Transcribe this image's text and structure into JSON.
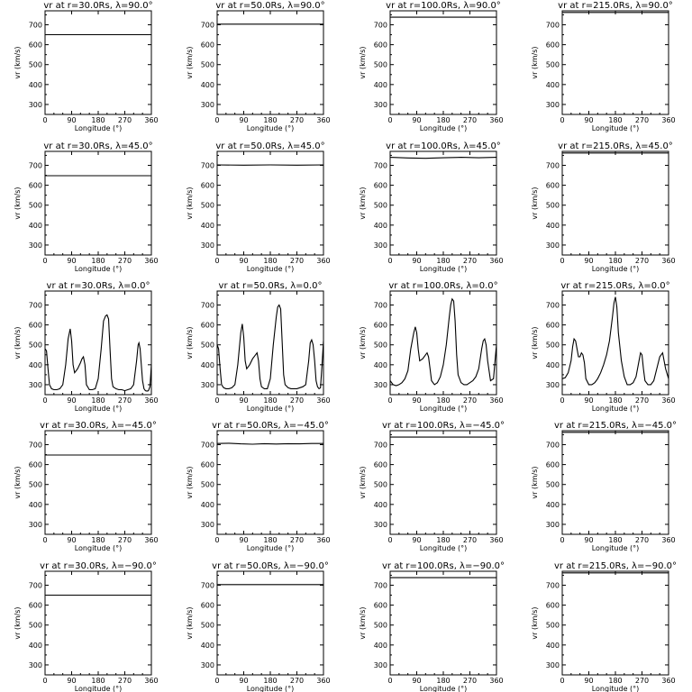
{
  "chart_data": [
    {
      "type": "line",
      "title": "vr at r=30.0Rs, λ=90.0°",
      "xlabel": "Longitude (°)",
      "ylabel": "vr (km/s)",
      "xlim": [
        0,
        360
      ],
      "ylim": [
        250,
        770
      ],
      "xticks": [
        "0",
        "90",
        "180",
        "270",
        "360"
      ],
      "yticks": [
        "300",
        "400",
        "500",
        "600",
        "700"
      ],
      "x": [
        0,
        360
      ],
      "y": [
        650,
        650
      ]
    },
    {
      "type": "line",
      "title": "vr at r=50.0Rs, λ=90.0°",
      "xlabel": "Longitude (°)",
      "ylabel": "vr (km/s)",
      "xlim": [
        0,
        360
      ],
      "ylim": [
        250,
        770
      ],
      "xticks": [
        "0",
        "90",
        "180",
        "270",
        "360"
      ],
      "yticks": [
        "300",
        "400",
        "500",
        "600",
        "700"
      ],
      "x": [
        0,
        360
      ],
      "y": [
        703,
        703
      ]
    },
    {
      "type": "line",
      "title": "vr at r=100.0Rs, λ=90.0°",
      "xlabel": "Longitude (°)",
      "ylabel": "vr (km/s)",
      "xlim": [
        0,
        360
      ],
      "ylim": [
        250,
        770
      ],
      "xticks": [
        "0",
        "90",
        "180",
        "270",
        "360"
      ],
      "yticks": [
        "300",
        "400",
        "500",
        "600",
        "700"
      ],
      "x": [
        0,
        360
      ],
      "y": [
        738,
        738
      ]
    },
    {
      "type": "line",
      "title": "vr at r=215.0Rs, λ=90.0°",
      "xlabel": "Longitude (°)",
      "ylabel": "vr (km/s)",
      "xlim": [
        0,
        360
      ],
      "ylim": [
        250,
        770
      ],
      "xticks": [
        "0",
        "90",
        "180",
        "270",
        "360"
      ],
      "yticks": [
        "300",
        "400",
        "500",
        "600",
        "700"
      ],
      "x": [
        0,
        360
      ],
      "y": [
        762,
        762
      ]
    },
    {
      "type": "line",
      "title": "vr at r=30.0Rs, λ=45.0°",
      "xlabel": "Longitude (°)",
      "ylabel": "vr (km/s)",
      "xlim": [
        0,
        360
      ],
      "ylim": [
        250,
        770
      ],
      "xticks": [
        "0",
        "90",
        "180",
        "270",
        "360"
      ],
      "yticks": [
        "300",
        "400",
        "500",
        "600",
        "700"
      ],
      "x": [
        0,
        360
      ],
      "y": [
        648,
        648
      ]
    },
    {
      "type": "line",
      "title": "vr at r=50.0Rs, λ=45.0°",
      "xlabel": "Longitude (°)",
      "ylabel": "vr (km/s)",
      "xlim": [
        0,
        360
      ],
      "ylim": [
        250,
        770
      ],
      "xticks": [
        "0",
        "90",
        "180",
        "270",
        "360"
      ],
      "yticks": [
        "300",
        "400",
        "500",
        "600",
        "700"
      ],
      "x": [
        0,
        90,
        180,
        270,
        360
      ],
      "y": [
        702,
        701,
        702,
        701,
        702
      ]
    },
    {
      "type": "line",
      "title": "vr at r=100.0Rs, λ=45.0°",
      "xlabel": "Longitude (°)",
      "ylabel": "vr (km/s)",
      "xlim": [
        0,
        360
      ],
      "ylim": [
        250,
        770
      ],
      "xticks": [
        "0",
        "90",
        "180",
        "270",
        "360"
      ],
      "yticks": [
        "300",
        "400",
        "500",
        "600",
        "700"
      ],
      "x": [
        0,
        60,
        120,
        180,
        240,
        300,
        360
      ],
      "y": [
        740,
        737,
        735,
        738,
        740,
        738,
        740
      ]
    },
    {
      "type": "line",
      "title": "vr at r=215.0Rs, λ=45.0°",
      "xlabel": "Longitude (°)",
      "ylabel": "vr (km/s)",
      "xlim": [
        0,
        360
      ],
      "ylim": [
        250,
        770
      ],
      "xticks": [
        "0",
        "90",
        "180",
        "270",
        "360"
      ],
      "yticks": [
        "300",
        "400",
        "500",
        "600",
        "700"
      ],
      "x": [
        0,
        360
      ],
      "y": [
        762,
        762
      ]
    },
    {
      "type": "line",
      "title": "vr at r=30.0Rs, λ=0.0°",
      "xlabel": "Longitude (°)",
      "ylabel": "vr (km/s)",
      "xlim": [
        0,
        360
      ],
      "ylim": [
        250,
        770
      ],
      "xticks": [
        "0",
        "90",
        "180",
        "270",
        "360"
      ],
      "yticks": [
        "300",
        "400",
        "500",
        "600",
        "700"
      ],
      "x": [
        0,
        5,
        10,
        15,
        22,
        30,
        40,
        50,
        60,
        70,
        78,
        85,
        90,
        95,
        100,
        110,
        120,
        125,
        130,
        135,
        140,
        150,
        160,
        170,
        180,
        190,
        198,
        205,
        210,
        215,
        220,
        225,
        230,
        240,
        250,
        260,
        270,
        280,
        290,
        300,
        310,
        315,
        318,
        322,
        325,
        330,
        335,
        340,
        345,
        350,
        355,
        358,
        360
      ],
      "y": [
        480,
        470,
        380,
        300,
        280,
        275,
        275,
        280,
        300,
        400,
        530,
        580,
        520,
        400,
        360,
        380,
        410,
        430,
        440,
        400,
        300,
        275,
        275,
        280,
        330,
        480,
        620,
        645,
        650,
        630,
        480,
        330,
        290,
        280,
        275,
        275,
        270,
        275,
        280,
        300,
        420,
        500,
        510,
        480,
        420,
        320,
        280,
        270,
        268,
        270,
        290,
        350,
        400
      ]
    },
    {
      "type": "line",
      "title": "vr at r=50.0Rs, λ=0.0°",
      "xlabel": "Longitude (°)",
      "ylabel": "vr (km/s)",
      "xlim": [
        0,
        360
      ],
      "ylim": [
        250,
        770
      ],
      "xticks": [
        "0",
        "90",
        "180",
        "270",
        "360"
      ],
      "yticks": [
        "300",
        "400",
        "500",
        "600",
        "700"
      ],
      "x": [
        0,
        5,
        10,
        15,
        22,
        30,
        40,
        50,
        60,
        70,
        80,
        85,
        90,
        95,
        100,
        110,
        120,
        130,
        135,
        140,
        145,
        150,
        160,
        170,
        180,
        190,
        200,
        205,
        210,
        215,
        220,
        225,
        230,
        240,
        250,
        260,
        270,
        280,
        290,
        300,
        310,
        315,
        320,
        325,
        330,
        335,
        340,
        345,
        350,
        355,
        360
      ],
      "y": [
        500,
        480,
        380,
        300,
        285,
        280,
        280,
        285,
        300,
        400,
        560,
        605,
        540,
        420,
        380,
        400,
        430,
        450,
        460,
        420,
        330,
        290,
        280,
        280,
        330,
        500,
        640,
        690,
        700,
        680,
        520,
        350,
        300,
        285,
        280,
        280,
        280,
        285,
        290,
        300,
        420,
        510,
        525,
        500,
        420,
        320,
        290,
        280,
        285,
        400,
        520
      ]
    },
    {
      "type": "line",
      "title": "vr at r=100.0Rs, λ=0.0°",
      "xlabel": "Longitude (°)",
      "ylabel": "vr (km/s)",
      "xlim": [
        0,
        360
      ],
      "ylim": [
        250,
        770
      ],
      "xticks": [
        "0",
        "90",
        "180",
        "270",
        "360"
      ],
      "yticks": [
        "300",
        "400",
        "500",
        "600",
        "700"
      ],
      "x": [
        0,
        10,
        20,
        30,
        40,
        50,
        60,
        70,
        80,
        85,
        90,
        95,
        100,
        110,
        120,
        125,
        130,
        135,
        140,
        150,
        160,
        170,
        180,
        190,
        200,
        205,
        210,
        215,
        220,
        225,
        230,
        240,
        250,
        260,
        270,
        280,
        290,
        300,
        310,
        315,
        320,
        325,
        330,
        340,
        350,
        355,
        360
      ],
      "y": [
        320,
        300,
        295,
        300,
        310,
        330,
        370,
        480,
        560,
        590,
        560,
        480,
        420,
        430,
        450,
        460,
        440,
        380,
        320,
        300,
        310,
        340,
        400,
        500,
        640,
        700,
        730,
        720,
        620,
        450,
        350,
        310,
        300,
        300,
        310,
        320,
        340,
        380,
        480,
        520,
        530,
        500,
        420,
        320,
        330,
        420,
        500
      ]
    },
    {
      "type": "line",
      "title": "vr at r=215.0Rs, λ=0.0°",
      "xlabel": "Longitude (°)",
      "ylabel": "vr (km/s)",
      "xlim": [
        0,
        360
      ],
      "ylim": [
        250,
        770
      ],
      "xticks": [
        "0",
        "90",
        "180",
        "270",
        "360"
      ],
      "yticks": [
        "300",
        "400",
        "500",
        "600",
        "700"
      ],
      "x": [
        0,
        10,
        20,
        30,
        35,
        40,
        45,
        50,
        55,
        60,
        65,
        70,
        75,
        80,
        90,
        100,
        110,
        120,
        130,
        140,
        150,
        160,
        170,
        175,
        180,
        185,
        190,
        200,
        210,
        220,
        230,
        240,
        250,
        260,
        265,
        270,
        275,
        280,
        290,
        300,
        310,
        320,
        330,
        340,
        350,
        360
      ],
      "y": [
        330,
        335,
        360,
        420,
        490,
        530,
        520,
        480,
        440,
        440,
        460,
        450,
        410,
        330,
        300,
        300,
        310,
        330,
        360,
        400,
        450,
        520,
        640,
        710,
        740,
        690,
        560,
        420,
        340,
        300,
        300,
        310,
        340,
        420,
        460,
        450,
        380,
        320,
        300,
        300,
        320,
        380,
        440,
        460,
        380,
        330
      ]
    },
    {
      "type": "line",
      "title": "vr at r=30.0Rs, λ=−45.0°",
      "xlabel": "Longitude (°)",
      "ylabel": "vr (km/s)",
      "xlim": [
        0,
        360
      ],
      "ylim": [
        250,
        770
      ],
      "xticks": [
        "0",
        "90",
        "180",
        "270",
        "360"
      ],
      "yticks": [
        "300",
        "400",
        "500",
        "600",
        "700"
      ],
      "x": [
        0,
        360
      ],
      "y": [
        648,
        648
      ]
    },
    {
      "type": "line",
      "title": "vr at r=50.0Rs, λ=−45.0°",
      "xlabel": "Longitude (°)",
      "ylabel": "vr (km/s)",
      "xlim": [
        0,
        360
      ],
      "ylim": [
        250,
        770
      ],
      "xticks": [
        "0",
        "90",
        "180",
        "270",
        "360"
      ],
      "yticks": [
        "300",
        "400",
        "500",
        "600",
        "700"
      ],
      "x": [
        0,
        40,
        80,
        120,
        160,
        200,
        240,
        280,
        320,
        360
      ],
      "y": [
        706,
        707,
        704,
        702,
        705,
        703,
        705,
        704,
        706,
        706
      ]
    },
    {
      "type": "line",
      "title": "vr at r=100.0Rs, λ=−45.0°",
      "xlabel": "Longitude (°)",
      "ylabel": "vr (km/s)",
      "xlim": [
        0,
        360
      ],
      "ylim": [
        250,
        770
      ],
      "xticks": [
        "0",
        "90",
        "180",
        "270",
        "360"
      ],
      "yticks": [
        "300",
        "400",
        "500",
        "600",
        "700"
      ],
      "x": [
        0,
        360
      ],
      "y": [
        738,
        738
      ]
    },
    {
      "type": "line",
      "title": "vr at r=215.0Rs, λ=−45.0°",
      "xlabel": "Longitude (°)",
      "ylabel": "vr (km/s)",
      "xlim": [
        0,
        360
      ],
      "ylim": [
        250,
        770
      ],
      "xticks": [
        "0",
        "90",
        "180",
        "270",
        "360"
      ],
      "yticks": [
        "300",
        "400",
        "500",
        "600",
        "700"
      ],
      "x": [
        0,
        360
      ],
      "y": [
        762,
        762
      ]
    },
    {
      "type": "line",
      "title": "vr at r=30.0Rs, λ=−90.0°",
      "xlabel": "Longitude (°)",
      "ylabel": "vr (km/s)",
      "xlim": [
        0,
        360
      ],
      "ylim": [
        250,
        770
      ],
      "xticks": [
        "0",
        "90",
        "180",
        "270",
        "360"
      ],
      "yticks": [
        "300",
        "400",
        "500",
        "600",
        "700"
      ],
      "x": [
        0,
        360
      ],
      "y": [
        650,
        650
      ]
    },
    {
      "type": "line",
      "title": "vr at r=50.0Rs, λ=−90.0°",
      "xlabel": "Longitude (°)",
      "ylabel": "vr (km/s)",
      "xlim": [
        0,
        360
      ],
      "ylim": [
        250,
        770
      ],
      "xticks": [
        "0",
        "90",
        "180",
        "270",
        "360"
      ],
      "yticks": [
        "300",
        "400",
        "500",
        "600",
        "700"
      ],
      "x": [
        0,
        360
      ],
      "y": [
        703,
        703
      ]
    },
    {
      "type": "line",
      "title": "vr at r=100.0Rs, λ=−90.0°",
      "xlabel": "Longitude (°)",
      "ylabel": "vr (km/s)",
      "xlim": [
        0,
        360
      ],
      "ylim": [
        250,
        770
      ],
      "xticks": [
        "0",
        "90",
        "180",
        "270",
        "360"
      ],
      "yticks": [
        "300",
        "400",
        "500",
        "600",
        "700"
      ],
      "x": [
        0,
        360
      ],
      "y": [
        738,
        738
      ]
    },
    {
      "type": "line",
      "title": "vr at r=215.0Rs, λ=−90.0°",
      "xlabel": "Longitude (°)",
      "ylabel": "vr (km/s)",
      "xlim": [
        0,
        360
      ],
      "ylim": [
        250,
        770
      ],
      "xticks": [
        "0",
        "90",
        "180",
        "270",
        "360"
      ],
      "yticks": [
        "300",
        "400",
        "500",
        "600",
        "700"
      ],
      "x": [
        0,
        360
      ],
      "y": [
        762,
        762
      ]
    }
  ]
}
